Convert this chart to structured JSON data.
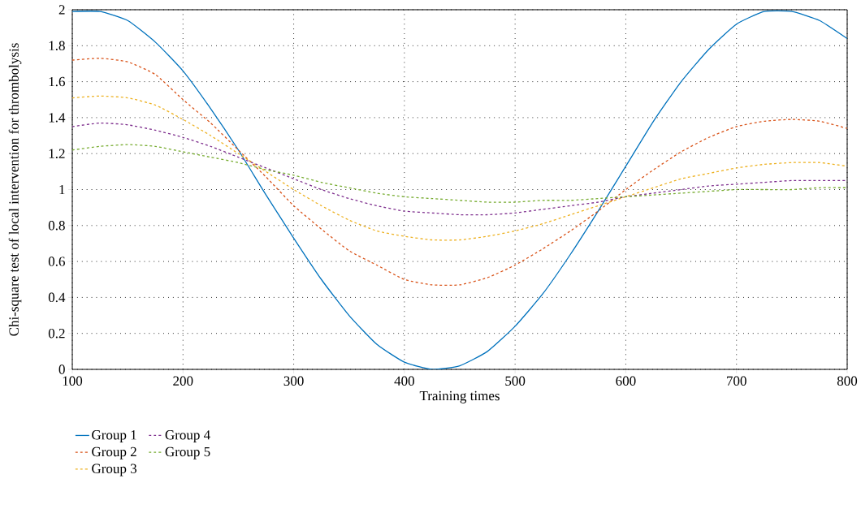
{
  "chart_data": {
    "type": "line",
    "xlabel": "Training times",
    "ylabel": "Chi-square test of local intervention for thrombolysis",
    "x": [
      100,
      125,
      150,
      175,
      200,
      225,
      250,
      275,
      300,
      325,
      350,
      375,
      400,
      425,
      450,
      475,
      500,
      525,
      550,
      575,
      600,
      625,
      650,
      675,
      700,
      725,
      750,
      775,
      800
    ],
    "series": [
      {
        "name": "Group 1",
        "color": "#0072bd",
        "line_style": "solid",
        "values": [
          1.99,
          1.99,
          1.94,
          1.82,
          1.66,
          1.45,
          1.22,
          0.97,
          0.73,
          0.5,
          0.3,
          0.14,
          0.04,
          0.0,
          0.02,
          0.1,
          0.24,
          0.42,
          0.64,
          0.88,
          1.13,
          1.38,
          1.6,
          1.78,
          1.92,
          1.99,
          1.99,
          1.94,
          1.84
        ]
      },
      {
        "name": "Group 2",
        "color": "#d95319",
        "line_style": "dashed",
        "values": [
          1.72,
          1.73,
          1.71,
          1.64,
          1.5,
          1.37,
          1.22,
          1.07,
          0.91,
          0.78,
          0.66,
          0.58,
          0.5,
          0.47,
          0.47,
          0.51,
          0.58,
          0.67,
          0.77,
          0.88,
          1.0,
          1.11,
          1.21,
          1.29,
          1.35,
          1.38,
          1.39,
          1.38,
          1.34
        ]
      },
      {
        "name": "Group 3",
        "color": "#edb120",
        "line_style": "dashed",
        "values": [
          1.51,
          1.52,
          1.51,
          1.47,
          1.39,
          1.3,
          1.2,
          1.1,
          1.0,
          0.91,
          0.83,
          0.77,
          0.74,
          0.72,
          0.72,
          0.74,
          0.77,
          0.81,
          0.86,
          0.91,
          0.96,
          1.01,
          1.06,
          1.09,
          1.12,
          1.14,
          1.15,
          1.15,
          1.13
        ]
      },
      {
        "name": "Group 4",
        "color": "#7e2f8e",
        "line_style": "dashed",
        "values": [
          1.35,
          1.37,
          1.36,
          1.33,
          1.29,
          1.24,
          1.18,
          1.12,
          1.06,
          1.0,
          0.95,
          0.91,
          0.88,
          0.87,
          0.86,
          0.86,
          0.87,
          0.89,
          0.91,
          0.93,
          0.96,
          0.98,
          1.0,
          1.02,
          1.03,
          1.04,
          1.05,
          1.05,
          1.05
        ]
      },
      {
        "name": "Group 5",
        "color": "#77ac30",
        "line_style": "dashed",
        "values": [
          1.22,
          1.24,
          1.25,
          1.24,
          1.21,
          1.18,
          1.15,
          1.11,
          1.08,
          1.04,
          1.01,
          0.98,
          0.96,
          0.95,
          0.94,
          0.93,
          0.93,
          0.94,
          0.94,
          0.95,
          0.96,
          0.97,
          0.98,
          0.99,
          1.0,
          1.0,
          1.0,
          1.01,
          1.01
        ]
      }
    ],
    "xlim": [
      100,
      800
    ],
    "xticks": [
      100,
      200,
      300,
      400,
      500,
      600,
      700,
      800
    ],
    "ylim": [
      0,
      2
    ],
    "yticks": [
      0,
      {
        "value": 0.2,
        "label": "0.2"
      },
      {
        "value": 0.4,
        "label": "0.4"
      },
      {
        "value": 0.6,
        "label": "0.6"
      },
      {
        "value": 0.8,
        "label": "0.8"
      },
      1,
      {
        "value": 1.2,
        "label": "1.2"
      },
      {
        "value": 1.4,
        "label": "1.4"
      },
      {
        "value": 1.6,
        "label": "1.6"
      },
      {
        "value": 1.8,
        "label": "1.8"
      },
      2
    ],
    "grid": true,
    "legend": "bottom left",
    "marker": "none"
  }
}
